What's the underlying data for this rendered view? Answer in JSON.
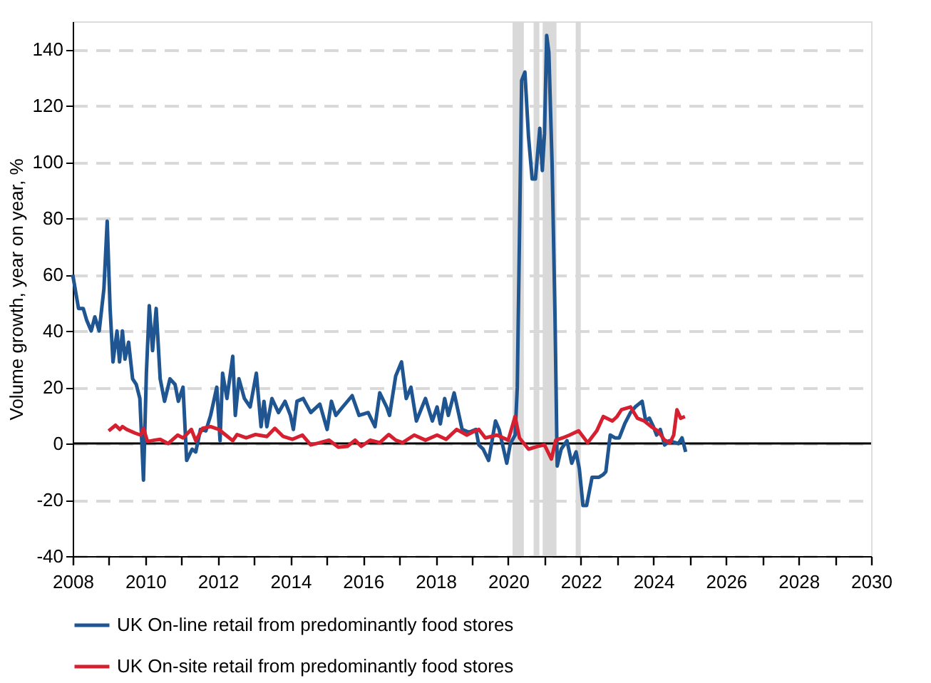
{
  "chart_data": {
    "type": "line",
    "ylabel": "Volume growth, year on year, %",
    "xlim": [
      2008,
      2030
    ],
    "xticks": [
      2008,
      {
        "value": 2009,
        "label": null
      },
      2010,
      {
        "value": 2011,
        "label": null
      },
      2012,
      {
        "value": 2013,
        "label": null
      },
      2014,
      {
        "value": 2015,
        "label": null
      },
      2016,
      {
        "value": 2017,
        "label": null
      },
      2018,
      {
        "value": 2019,
        "label": null
      },
      2020,
      {
        "value": 2021,
        "label": null
      },
      2022,
      {
        "value": 2023,
        "label": null
      },
      2024,
      {
        "value": 2025,
        "label": null
      },
      2026,
      {
        "value": 2027,
        "label": null
      },
      2028,
      {
        "value": 2029,
        "label": null
      },
      2030
    ],
    "ylim": [
      -40,
      150
    ],
    "yticks": [
      -40,
      -20,
      0,
      20,
      40,
      60,
      80,
      100,
      120,
      140
    ],
    "grid": "y",
    "legend": "bottom",
    "line_style": "solid",
    "ref_lines": [
      {
        "axis": "y",
        "value": 0,
        "color": "#000000"
      }
    ],
    "bands": [
      {
        "axis": "x",
        "from": 2020.12,
        "to": 2020.43,
        "color": "#d9d9d9"
      },
      {
        "axis": "x",
        "from": 2020.7,
        "to": 2020.86,
        "color": "#d9d9d9"
      },
      {
        "axis": "x",
        "from": 2020.95,
        "to": 2021.33,
        "color": "#d9d9d9"
      },
      {
        "axis": "x",
        "from": 2021.86,
        "to": 2022.0,
        "color": "#d9d9d9"
      }
    ],
    "series": [
      {
        "name": "UK On-line retail from predominantly food stores",
        "color": "#1f5591",
        "x": [
          2008.0,
          2008.16,
          2008.29,
          2008.38,
          2008.51,
          2008.61,
          2008.73,
          2008.86,
          2008.95,
          2009.03,
          2009.11,
          2009.22,
          2009.29,
          2009.37,
          2009.44,
          2009.54,
          2009.65,
          2009.75,
          2009.85,
          2009.95,
          2010.03,
          2010.11,
          2010.2,
          2010.3,
          2010.41,
          2010.53,
          2010.68,
          2010.82,
          2010.91,
          2011.04,
          2011.14,
          2011.29,
          2011.39,
          2011.52,
          2011.67,
          2011.8,
          2011.97,
          2012.06,
          2012.13,
          2012.25,
          2012.41,
          2012.48,
          2012.58,
          2012.73,
          2012.89,
          2013.06,
          2013.19,
          2013.27,
          2013.35,
          2013.49,
          2013.67,
          2013.85,
          2014.0,
          2014.08,
          2014.18,
          2014.35,
          2014.56,
          2014.81,
          2015.01,
          2015.13,
          2015.25,
          2015.44,
          2015.7,
          2015.89,
          2016.14,
          2016.33,
          2016.46,
          2016.65,
          2016.73,
          2016.9,
          2017.06,
          2017.19,
          2017.32,
          2017.47,
          2017.72,
          2017.91,
          2018.04,
          2018.13,
          2018.25,
          2018.35,
          2018.51,
          2018.73,
          2018.92,
          2019.11,
          2019.19,
          2019.31,
          2019.46,
          2019.65,
          2019.75,
          2019.96,
          2020.06,
          2020.19,
          2020.25,
          2020.31,
          2020.37,
          2020.46,
          2020.56,
          2020.66,
          2020.75,
          2020.87,
          2020.94,
          2021.0,
          2021.06,
          2021.12,
          2021.21,
          2021.29,
          2021.35,
          2021.46,
          2021.62,
          2021.75,
          2021.87,
          2021.96,
          2022.06,
          2022.16,
          2022.31,
          2022.5,
          2022.62,
          2022.69,
          2022.81,
          2022.94,
          2023.06,
          2023.21,
          2023.37,
          2023.5,
          2023.69,
          2023.79,
          2023.89,
          2024.0,
          2024.09,
          2024.19,
          2024.31,
          2024.44,
          2024.56,
          2024.69,
          2024.79,
          2024.89
        ],
        "values": [
          60,
          48,
          48,
          44,
          40,
          45,
          40,
          55,
          79,
          48,
          29,
          40,
          29,
          40,
          30,
          36,
          23,
          21,
          16,
          -13,
          25,
          49,
          33,
          48,
          23,
          15,
          23,
          21,
          15,
          20,
          -6,
          -2,
          -3,
          5,
          4.5,
          10,
          20,
          1,
          25,
          16,
          31,
          10,
          23,
          16,
          13,
          25,
          6,
          15,
          6,
          16,
          11,
          15,
          10,
          5,
          15,
          16,
          11,
          14,
          5,
          15,
          10,
          13,
          17,
          10,
          11,
          6,
          18,
          13,
          10,
          24,
          29,
          16,
          20,
          8,
          16,
          8,
          13,
          7,
          16,
          10,
          18,
          5,
          4,
          5,
          -0.5,
          -2,
          -6,
          8,
          5,
          -7,
          0,
          3,
          20,
          73,
          129,
          132,
          109,
          94,
          94,
          112,
          97,
          110,
          145,
          139,
          99,
          45,
          -8,
          -2,
          1,
          -7,
          -3,
          -9,
          -22,
          -22,
          -12,
          -12,
          -11,
          -10,
          3,
          2,
          2,
          7,
          11,
          13,
          15,
          8,
          9,
          6,
          3,
          5,
          -0.5,
          1,
          0.5,
          0,
          2,
          -3
        ]
      },
      {
        "name": "UK On-site retail from predominantly food stores",
        "color": "#d62030",
        "x": [
          2008.99,
          2009.18,
          2009.3,
          2009.37,
          2009.49,
          2009.72,
          2009.87,
          2009.95,
          2010.06,
          2010.25,
          2010.41,
          2010.63,
          2010.89,
          2011.04,
          2011.27,
          2011.39,
          2011.58,
          2011.8,
          2012.03,
          2012.15,
          2012.41,
          2012.53,
          2012.78,
          2013.04,
          2013.35,
          2013.57,
          2013.8,
          2014.05,
          2014.33,
          2014.56,
          2014.81,
          2015.06,
          2015.32,
          2015.57,
          2015.78,
          2015.95,
          2016.2,
          2016.46,
          2016.71,
          2016.9,
          2017.09,
          2017.41,
          2017.72,
          2018.04,
          2018.29,
          2018.58,
          2018.86,
          2019.09,
          2019.19,
          2019.37,
          2019.69,
          2020.0,
          2020.19,
          2020.31,
          2020.56,
          2020.81,
          2021.0,
          2021.19,
          2021.31,
          2021.5,
          2021.69,
          2021.94,
          2022.19,
          2022.44,
          2022.62,
          2022.87,
          2023.0,
          2023.12,
          2023.37,
          2023.56,
          2023.75,
          2023.94,
          2024.12,
          2024.31,
          2024.46,
          2024.56,
          2024.65,
          2024.75,
          2024.87
        ],
        "values": [
          4.5,
          6.5,
          5,
          6,
          5,
          3.7,
          3,
          5.4,
          0.7,
          1.2,
          1.5,
          0,
          3,
          2,
          5,
          1,
          5.4,
          6,
          5,
          3.7,
          1,
          3.2,
          2,
          3.2,
          2.5,
          5.4,
          2.5,
          1.5,
          3,
          -0.5,
          0.3,
          1.2,
          -1.3,
          -1,
          1.2,
          -1,
          1.2,
          0.3,
          3.2,
          1.2,
          0.3,
          3,
          1.2,
          3,
          1.5,
          5,
          3,
          4.5,
          5,
          2,
          3,
          1.2,
          9.6,
          2,
          -2,
          -1,
          -0.5,
          -5.5,
          1.2,
          2,
          3,
          4.5,
          0.3,
          4.5,
          9.6,
          8,
          9.6,
          12,
          13,
          9,
          8,
          6,
          4.5,
          1.2,
          0.3,
          3,
          12,
          9,
          9.6
        ]
      }
    ]
  }
}
